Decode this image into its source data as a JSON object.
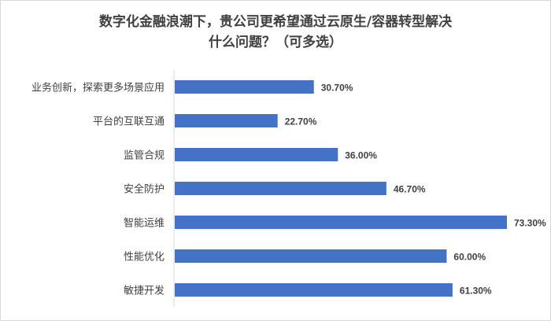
{
  "chart_data": {
    "type": "bar",
    "orientation": "horizontal",
    "title_lines": [
      "数字化金融浪潮下，贵公司更希望通过云原生/容器转型解决",
      "什么问题？（可多选）"
    ],
    "categories": [
      "业务创新，探索更多场景应用",
      "平台的互联互通",
      "监管合规",
      "安全防护",
      "智能运维",
      "性能优化",
      "敏捷开发"
    ],
    "values": [
      30.7,
      22.7,
      36.0,
      46.7,
      73.3,
      60.0,
      61.3
    ],
    "data_labels": [
      "30.70%",
      "22.70%",
      "36.00%",
      "46.70%",
      "73.30%",
      "60.00%",
      "61.30%"
    ],
    "xlim": [
      0,
      80
    ],
    "grid": false,
    "legend": "none",
    "bar_color": "#4472C4"
  }
}
